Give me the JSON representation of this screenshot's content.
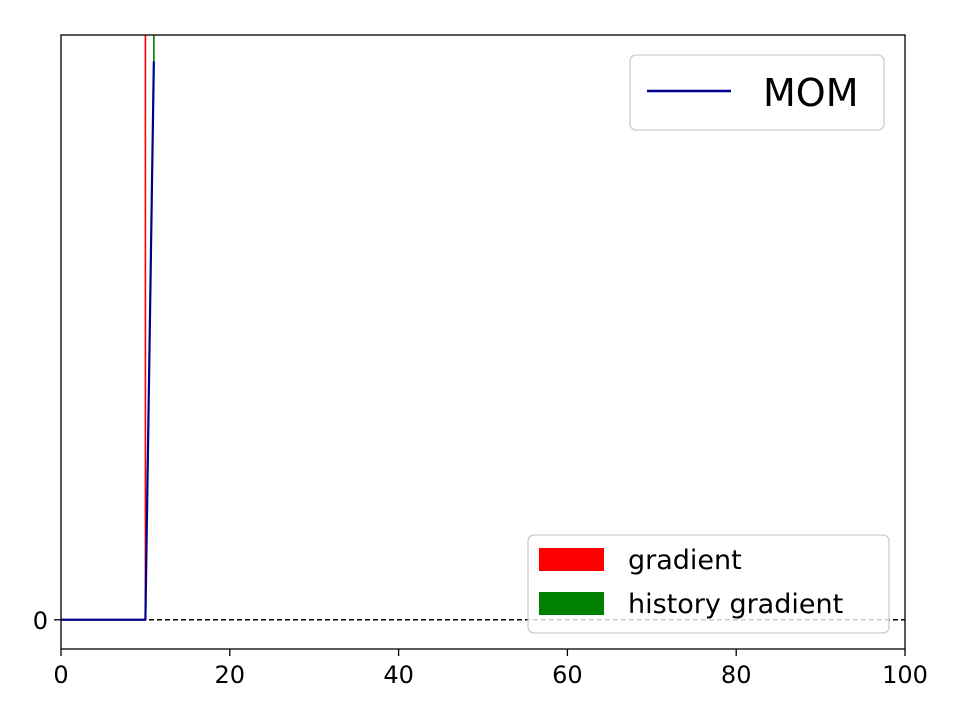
{
  "chart_data": {
    "type": "line",
    "title": "",
    "xlabel": "",
    "ylabel": "",
    "xlim": [
      0,
      100
    ],
    "ylim": [
      -5,
      100
    ],
    "x_ticks": [
      {
        "value": 0,
        "label": "0"
      },
      {
        "value": 20,
        "label": "20"
      },
      {
        "value": 40,
        "label": "40"
      },
      {
        "value": 60,
        "label": "60"
      },
      {
        "value": 80,
        "label": "80"
      },
      {
        "value": 100,
        "label": "100"
      }
    ],
    "y_ticks": [
      {
        "value": 0,
        "label": "0"
      }
    ],
    "series": [
      {
        "name": "MOM",
        "color": "#00008b",
        "x": [
          0,
          10,
          11
        ],
        "y": [
          0,
          0,
          95.5
        ]
      }
    ],
    "vertical_markers": [
      {
        "name": "gradient",
        "x": 10,
        "color": "#ff0000",
        "y_from": 0,
        "y_to": 100
      },
      {
        "name": "history gradient",
        "x": 11,
        "color": "#008000",
        "y_from": 95.5,
        "y_to": 100
      }
    ],
    "reference_lines": [
      {
        "y": 0,
        "style": "dashed",
        "color": "#000000"
      }
    ],
    "legends": [
      {
        "placement": "top-right",
        "entries": [
          {
            "label": "MOM",
            "kind": "line",
            "color": "#00008b"
          }
        ]
      },
      {
        "placement": "lower-right",
        "entries": [
          {
            "label": "gradient",
            "kind": "patch",
            "color": "#ff0000"
          },
          {
            "label": "history gradient",
            "kind": "patch",
            "color": "#008000"
          }
        ]
      }
    ],
    "grid": false
  }
}
